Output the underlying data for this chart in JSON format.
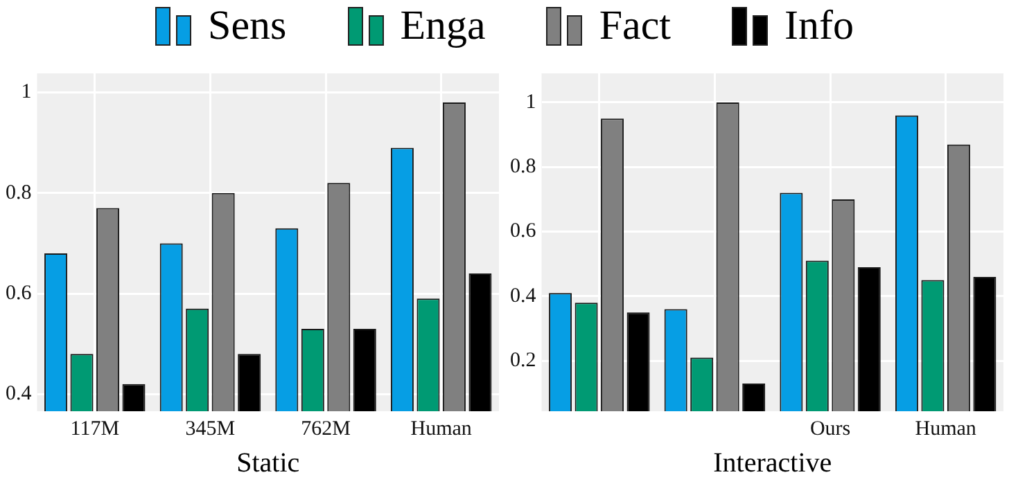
{
  "chart_data": [
    {
      "type": "bar",
      "xlabel": "Static",
      "categories": [
        "117M",
        "345M",
        "762M",
        "Human"
      ],
      "series": [
        {
          "name": "Sens",
          "color": "#069ee4",
          "values": [
            0.68,
            0.7,
            0.73,
            0.89
          ]
        },
        {
          "name": "Enga",
          "color": "#009a73",
          "values": [
            0.48,
            0.57,
            0.53,
            0.59
          ]
        },
        {
          "name": "Fact",
          "color": "#808080",
          "values": [
            0.77,
            0.8,
            0.82,
            0.98
          ]
        },
        {
          "name": "Info",
          "color": "#000000",
          "values": [
            0.42,
            0.48,
            0.53,
            0.64
          ]
        }
      ],
      "ylim": [
        0.366,
        1.038
      ],
      "yticks": [
        0.4,
        0.6,
        0.8,
        1
      ],
      "grid": true,
      "legend": "top"
    },
    {
      "type": "bar",
      "xlabel": "Interactive",
      "categories": [
        null,
        null,
        "Ours",
        "Human"
      ],
      "series": [
        {
          "color": "#069ee4",
          "values": [
            0.41,
            0.36,
            0.72,
            0.96
          ]
        },
        {
          "color": "#009a73",
          "values": [
            0.38,
            0.21,
            0.51,
            0.45
          ]
        },
        {
          "color": "#808080",
          "values": [
            0.95,
            1.0,
            0.7,
            0.87
          ]
        },
        {
          "color": "#000000",
          "values": [
            0.35,
            0.13,
            0.49,
            0.46
          ]
        }
      ],
      "ylim": [
        0.044,
        1.09
      ],
      "yticks": [
        0.2,
        0.4,
        0.6,
        0.8,
        1
      ],
      "grid": true
    }
  ]
}
